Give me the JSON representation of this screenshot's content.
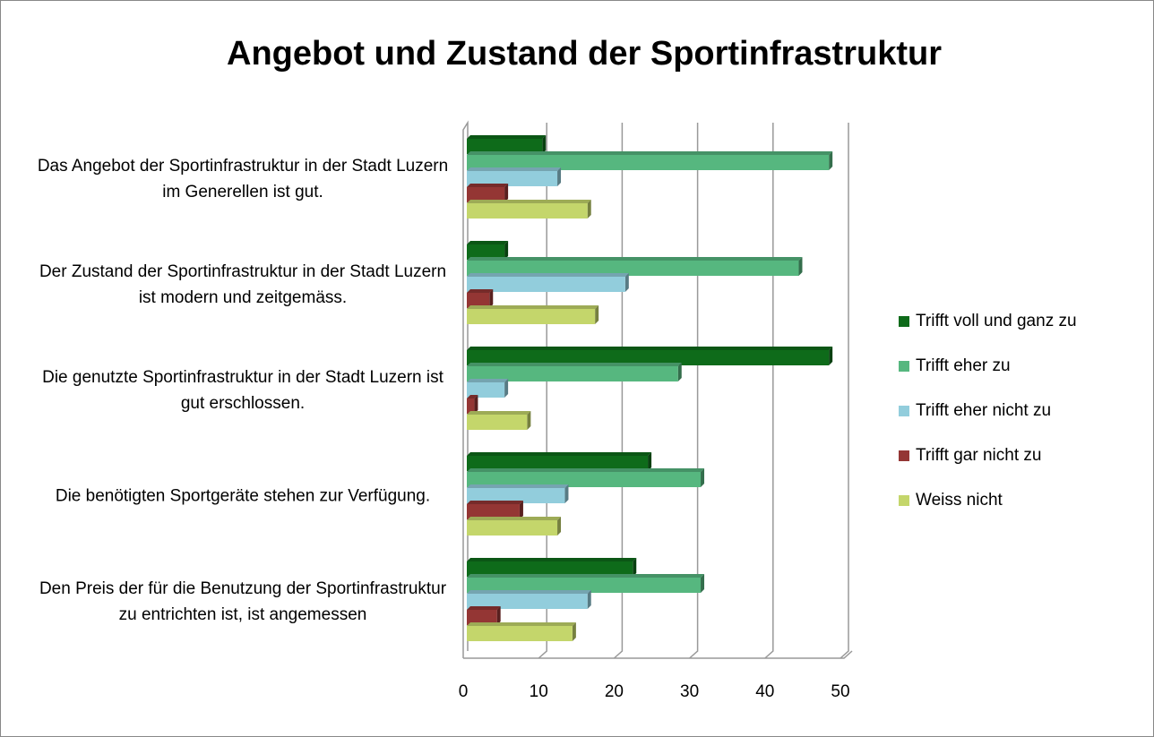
{
  "chart_data": {
    "type": "bar",
    "orientation": "horizontal",
    "title": "Angebot und Zustand der Sportinfrastruktur",
    "categories": [
      "Das Angebot der Sportinfrastruktur in der Stadt Luzern im Generellen ist gut.",
      "Der Zustand der Sportinfrastruktur in der Stadt Luzern ist modern und zeitgemäss.",
      "Die genutzte Sportinfrastruktur in der Stadt Luzern ist gut erschlossen.",
      "Die benötigten Sportgeräte stehen zur Verfügung.",
      "Den Preis der für die Benutzung der Sportinfrastruktur zu entrichten ist, ist angemessen"
    ],
    "series": [
      {
        "name": "Trifft voll und ganz zu",
        "color": "#0e6b1a",
        "values": [
          10,
          5,
          48,
          24,
          22
        ]
      },
      {
        "name": "Trifft eher zu",
        "color": "#56b77f",
        "values": [
          48,
          44,
          28,
          31,
          31
        ]
      },
      {
        "name": "Trifft eher nicht zu",
        "color": "#92cddc",
        "values": [
          12,
          21,
          5,
          13,
          16
        ]
      },
      {
        "name": "Trifft gar nicht zu",
        "color": "#943634",
        "values": [
          5,
          3,
          1,
          7,
          4
        ]
      },
      {
        "name": "Weiss nicht",
        "color": "#c4d66b",
        "values": [
          16,
          17,
          8,
          12,
          14
        ]
      }
    ],
    "xlim": [
      0,
      50
    ],
    "xticks": [
      0,
      10,
      20,
      30,
      40,
      50
    ],
    "grid": true,
    "legend": "right"
  }
}
